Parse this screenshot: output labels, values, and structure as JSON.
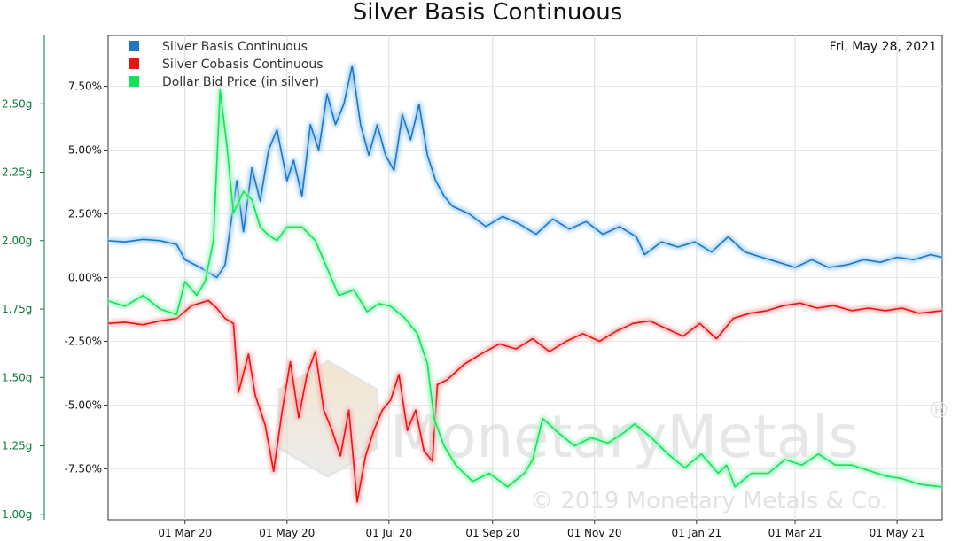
{
  "chart_data": {
    "type": "line",
    "title": "Silver Basis Continuous",
    "date_label": "Fri, May 28, 2021",
    "x_ticks": [
      "01 Mar 20",
      "01 May 20",
      "01 Jul 20",
      "01 Sep 20",
      "01 Nov 20",
      "01 Jan 21",
      "01 Mar 21",
      "01 May 21"
    ],
    "y_right_ticks": [
      "7.50%",
      "5.00%",
      "2.50%",
      "0.00%",
      "-2.50%",
      "-5.00%",
      "-7.50%"
    ],
    "y_right_values": [
      7.5,
      5.0,
      2.5,
      0.0,
      -2.5,
      -5.0,
      -7.5
    ],
    "y_right_range": [
      -9.5,
      9.5
    ],
    "y_left_ticks": [
      "2.50g",
      "2.25g",
      "2.00g",
      "1.75g",
      "1.50g",
      "1.25g",
      "1.00g"
    ],
    "y_left_values": [
      2.5,
      2.25,
      2.0,
      1.75,
      1.5,
      1.25,
      1.0
    ],
    "y_left_range": [
      0.98,
      2.75
    ],
    "x_range": [
      "2020-01-15",
      "2021-05-28"
    ],
    "legend": [
      "Silver Basis Continuous",
      "Silver Cobasis Continuous",
      "Dollar Bid Price (in silver)"
    ],
    "watermark": {
      "brand": "MonetaryMetals",
      "registered": "®",
      "copyright": "© 2019 Monetary Metals & Co."
    },
    "colors": {
      "basis": "#1f77c4",
      "cobasis": "#ee1111",
      "dollar": "#11e35a"
    },
    "series": [
      {
        "name": "Silver Basis Continuous",
        "axis": "right",
        "points": [
          [
            "2020-01-15",
            1.45
          ],
          [
            "2020-01-25",
            1.4
          ],
          [
            "2020-02-05",
            1.5
          ],
          [
            "2020-02-15",
            1.45
          ],
          [
            "2020-02-25",
            1.3
          ],
          [
            "2020-03-01",
            0.7
          ],
          [
            "2020-03-10",
            0.4
          ],
          [
            "2020-03-20",
            0.0
          ],
          [
            "2020-03-25",
            0.5
          ],
          [
            "2020-04-01",
            3.8
          ],
          [
            "2020-04-05",
            1.8
          ],
          [
            "2020-04-10",
            4.3
          ],
          [
            "2020-04-15",
            3.0
          ],
          [
            "2020-04-20",
            5.0
          ],
          [
            "2020-04-25",
            5.8
          ],
          [
            "2020-05-01",
            3.8
          ],
          [
            "2020-05-05",
            4.6
          ],
          [
            "2020-05-10",
            3.2
          ],
          [
            "2020-05-15",
            6.0
          ],
          [
            "2020-05-20",
            5.0
          ],
          [
            "2020-05-25",
            7.2
          ],
          [
            "2020-05-30",
            6.0
          ],
          [
            "2020-06-04",
            6.8
          ],
          [
            "2020-06-09",
            8.3
          ],
          [
            "2020-06-14",
            6.0
          ],
          [
            "2020-06-19",
            4.8
          ],
          [
            "2020-06-24",
            6.0
          ],
          [
            "2020-06-29",
            4.8
          ],
          [
            "2020-07-04",
            4.2
          ],
          [
            "2020-07-09",
            6.4
          ],
          [
            "2020-07-14",
            5.4
          ],
          [
            "2020-07-19",
            6.8
          ],
          [
            "2020-07-24",
            4.8
          ],
          [
            "2020-07-29",
            3.8
          ],
          [
            "2020-08-03",
            3.2
          ],
          [
            "2020-08-08",
            2.8
          ],
          [
            "2020-08-18",
            2.5
          ],
          [
            "2020-08-28",
            2.0
          ],
          [
            "2020-09-07",
            2.4
          ],
          [
            "2020-09-17",
            2.1
          ],
          [
            "2020-09-27",
            1.7
          ],
          [
            "2020-10-07",
            2.3
          ],
          [
            "2020-10-17",
            1.9
          ],
          [
            "2020-10-27",
            2.2
          ],
          [
            "2020-11-06",
            1.7
          ],
          [
            "2020-11-16",
            2.0
          ],
          [
            "2020-11-26",
            1.6
          ],
          [
            "2020-12-01",
            0.9
          ],
          [
            "2020-12-11",
            1.4
          ],
          [
            "2020-12-21",
            1.2
          ],
          [
            "2020-12-31",
            1.4
          ],
          [
            "2021-01-10",
            1.0
          ],
          [
            "2021-01-20",
            1.6
          ],
          [
            "2021-01-30",
            1.0
          ],
          [
            "2021-02-09",
            0.8
          ],
          [
            "2021-02-19",
            0.6
          ],
          [
            "2021-03-01",
            0.4
          ],
          [
            "2021-03-11",
            0.7
          ],
          [
            "2021-03-21",
            0.4
          ],
          [
            "2021-04-01",
            0.5
          ],
          [
            "2021-04-11",
            0.7
          ],
          [
            "2021-04-21",
            0.6
          ],
          [
            "2021-05-01",
            0.8
          ],
          [
            "2021-05-11",
            0.7
          ],
          [
            "2021-05-21",
            0.9
          ],
          [
            "2021-05-28",
            0.8
          ]
        ]
      },
      {
        "name": "Silver Cobasis Continuous",
        "axis": "right",
        "points": [
          [
            "2020-01-15",
            -1.8
          ],
          [
            "2020-01-25",
            -1.75
          ],
          [
            "2020-02-05",
            -1.85
          ],
          [
            "2020-02-15",
            -1.7
          ],
          [
            "2020-02-25",
            -1.6
          ],
          [
            "2020-03-05",
            -1.1
          ],
          [
            "2020-03-15",
            -0.9
          ],
          [
            "2020-03-20",
            -1.2
          ],
          [
            "2020-03-25",
            -1.6
          ],
          [
            "2020-03-30",
            -1.8
          ],
          [
            "2020-04-02",
            -4.5
          ],
          [
            "2020-04-08",
            -3.0
          ],
          [
            "2020-04-12",
            -4.6
          ],
          [
            "2020-04-18",
            -5.8
          ],
          [
            "2020-04-23",
            -7.6
          ],
          [
            "2020-04-28",
            -5.3
          ],
          [
            "2020-05-03",
            -3.3
          ],
          [
            "2020-05-08",
            -5.5
          ],
          [
            "2020-05-13",
            -3.8
          ],
          [
            "2020-05-18",
            -2.9
          ],
          [
            "2020-05-23",
            -5.2
          ],
          [
            "2020-05-28",
            -6.0
          ],
          [
            "2020-06-02",
            -7.0
          ],
          [
            "2020-06-07",
            -5.2
          ],
          [
            "2020-06-12",
            -8.8
          ],
          [
            "2020-06-17",
            -7.0
          ],
          [
            "2020-06-22",
            -6.0
          ],
          [
            "2020-06-27",
            -5.2
          ],
          [
            "2020-07-02",
            -4.8
          ],
          [
            "2020-07-07",
            -3.8
          ],
          [
            "2020-07-12",
            -6.0
          ],
          [
            "2020-07-17",
            -5.2
          ],
          [
            "2020-07-22",
            -6.8
          ],
          [
            "2020-07-27",
            -7.2
          ],
          [
            "2020-07-30",
            -4.2
          ],
          [
            "2020-08-05",
            -4.0
          ],
          [
            "2020-08-15",
            -3.4
          ],
          [
            "2020-08-25",
            -3.0
          ],
          [
            "2020-09-05",
            -2.6
          ],
          [
            "2020-09-15",
            -2.8
          ],
          [
            "2020-09-25",
            -2.4
          ],
          [
            "2020-10-05",
            -2.9
          ],
          [
            "2020-10-15",
            -2.5
          ],
          [
            "2020-10-25",
            -2.2
          ],
          [
            "2020-11-04",
            -2.5
          ],
          [
            "2020-11-14",
            -2.1
          ],
          [
            "2020-11-24",
            -1.8
          ],
          [
            "2020-12-04",
            -1.7
          ],
          [
            "2020-12-14",
            -2.0
          ],
          [
            "2020-12-24",
            -2.3
          ],
          [
            "2021-01-03",
            -1.8
          ],
          [
            "2021-01-13",
            -2.4
          ],
          [
            "2021-01-23",
            -1.6
          ],
          [
            "2021-02-02",
            -1.4
          ],
          [
            "2021-02-12",
            -1.3
          ],
          [
            "2021-02-22",
            -1.1
          ],
          [
            "2021-03-04",
            -1.0
          ],
          [
            "2021-03-14",
            -1.2
          ],
          [
            "2021-03-24",
            -1.1
          ],
          [
            "2021-04-04",
            -1.3
          ],
          [
            "2021-04-14",
            -1.2
          ],
          [
            "2021-04-24",
            -1.3
          ],
          [
            "2021-05-04",
            -1.2
          ],
          [
            "2021-05-14",
            -1.4
          ],
          [
            "2021-05-28",
            -1.3
          ]
        ]
      },
      {
        "name": "Dollar Bid Price (in silver)",
        "axis": "left",
        "points": [
          [
            "2020-01-15",
            1.78
          ],
          [
            "2020-01-25",
            1.76
          ],
          [
            "2020-02-05",
            1.8
          ],
          [
            "2020-02-15",
            1.75
          ],
          [
            "2020-02-25",
            1.73
          ],
          [
            "2020-03-01",
            1.85
          ],
          [
            "2020-03-08",
            1.8
          ],
          [
            "2020-03-13",
            1.85
          ],
          [
            "2020-03-18",
            2.0
          ],
          [
            "2020-03-22",
            2.55
          ],
          [
            "2020-03-26",
            2.35
          ],
          [
            "2020-03-30",
            2.1
          ],
          [
            "2020-04-05",
            2.18
          ],
          [
            "2020-04-10",
            2.15
          ],
          [
            "2020-04-15",
            2.05
          ],
          [
            "2020-04-20",
            2.02
          ],
          [
            "2020-04-25",
            2.0
          ],
          [
            "2020-05-01",
            2.05
          ],
          [
            "2020-05-10",
            2.05
          ],
          [
            "2020-05-18",
            2.0
          ],
          [
            "2020-05-25",
            1.9
          ],
          [
            "2020-06-01",
            1.8
          ],
          [
            "2020-06-10",
            1.82
          ],
          [
            "2020-06-18",
            1.74
          ],
          [
            "2020-06-25",
            1.77
          ],
          [
            "2020-07-02",
            1.76
          ],
          [
            "2020-07-10",
            1.72
          ],
          [
            "2020-07-18",
            1.66
          ],
          [
            "2020-07-24",
            1.55
          ],
          [
            "2020-07-28",
            1.35
          ],
          [
            "2020-08-03",
            1.25
          ],
          [
            "2020-08-10",
            1.18
          ],
          [
            "2020-08-20",
            1.12
          ],
          [
            "2020-08-30",
            1.15
          ],
          [
            "2020-09-10",
            1.1
          ],
          [
            "2020-09-20",
            1.15
          ],
          [
            "2020-09-25",
            1.2
          ],
          [
            "2020-10-01",
            1.35
          ],
          [
            "2020-10-10",
            1.3
          ],
          [
            "2020-10-20",
            1.25
          ],
          [
            "2020-10-30",
            1.28
          ],
          [
            "2020-11-09",
            1.26
          ],
          [
            "2020-11-19",
            1.3
          ],
          [
            "2020-11-25",
            1.33
          ],
          [
            "2020-12-05",
            1.28
          ],
          [
            "2020-12-15",
            1.22
          ],
          [
            "2020-12-25",
            1.17
          ],
          [
            "2021-01-04",
            1.22
          ],
          [
            "2021-01-14",
            1.15
          ],
          [
            "2021-01-19",
            1.18
          ],
          [
            "2021-01-24",
            1.1
          ],
          [
            "2021-02-03",
            1.15
          ],
          [
            "2021-02-13",
            1.15
          ],
          [
            "2021-02-23",
            1.2
          ],
          [
            "2021-03-05",
            1.18
          ],
          [
            "2021-03-15",
            1.22
          ],
          [
            "2021-03-25",
            1.18
          ],
          [
            "2021-04-04",
            1.18
          ],
          [
            "2021-04-14",
            1.16
          ],
          [
            "2021-04-24",
            1.14
          ],
          [
            "2021-05-04",
            1.13
          ],
          [
            "2021-05-14",
            1.11
          ],
          [
            "2021-05-28",
            1.1
          ]
        ]
      }
    ]
  }
}
